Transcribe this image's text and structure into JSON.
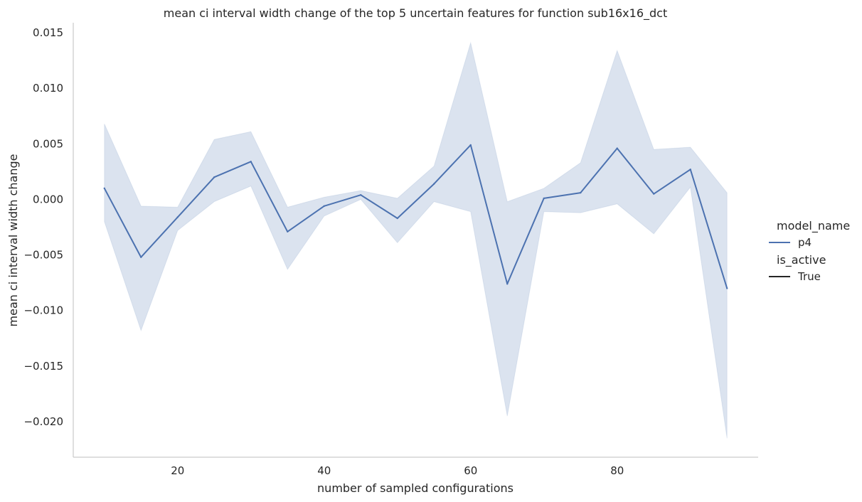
{
  "chart_data": {
    "type": "line",
    "title": "mean ci interval width change of the top 5 uncertain features for function sub16x16_dct",
    "xlabel": "number of sampled configurations",
    "ylabel": "mean ci interval width change",
    "xlim": [
      5.75,
      99.25
    ],
    "ylim": [
      -0.0232,
      0.0159
    ],
    "xticks": [
      20,
      40,
      60,
      80
    ],
    "xtick_labels": [
      "20",
      "40",
      "60",
      "80"
    ],
    "yticks": [
      0.015,
      0.01,
      0.005,
      0.0,
      -0.005,
      -0.01,
      -0.015,
      -0.02
    ],
    "ytick_labels": [
      "0.015",
      "0.010",
      "0.005",
      "0.000",
      "−0.005",
      "−0.010",
      "−0.015",
      "−0.020"
    ],
    "grid": false,
    "legend_position": "right",
    "series": [
      {
        "name": "p4",
        "color": "#4c72b0",
        "band_color": "#4c72b0",
        "x": [
          10,
          15,
          20,
          25,
          30,
          35,
          40,
          45,
          50,
          55,
          60,
          65,
          70,
          75,
          80,
          85,
          90,
          95
        ],
        "values": [
          0.001,
          -0.0052,
          -0.0016,
          0.002,
          0.0034,
          -0.0029,
          -0.0006,
          0.0004,
          -0.0017,
          0.0014,
          0.0049,
          -0.0076,
          0.0001,
          0.0006,
          0.0046,
          0.0005,
          0.0027,
          -0.008
        ],
        "ci_lower": [
          -0.002,
          -0.0118,
          -0.0028,
          -0.0002,
          0.0012,
          -0.0063,
          -0.0015,
          0.0,
          -0.0039,
          -0.0002,
          -0.0011,
          -0.0195,
          -0.0011,
          -0.0012,
          -0.0004,
          -0.0031,
          0.0011,
          -0.0215
        ],
        "ci_upper": [
          0.0068,
          -0.0006,
          -0.0007,
          0.0054,
          0.0061,
          -0.0007,
          0.0002,
          0.0008,
          0.0001,
          0.003,
          0.0141,
          -0.0002,
          0.001,
          0.0033,
          0.0134,
          0.0045,
          0.0047,
          0.0006
        ]
      }
    ],
    "legend": {
      "hue_title": "model_name",
      "hue_entries": [
        {
          "label": "p4",
          "color": "#4c72b0"
        }
      ],
      "style_title": "is_active",
      "style_entries": [
        {
          "label": "True",
          "color": "#262626"
        }
      ]
    }
  }
}
